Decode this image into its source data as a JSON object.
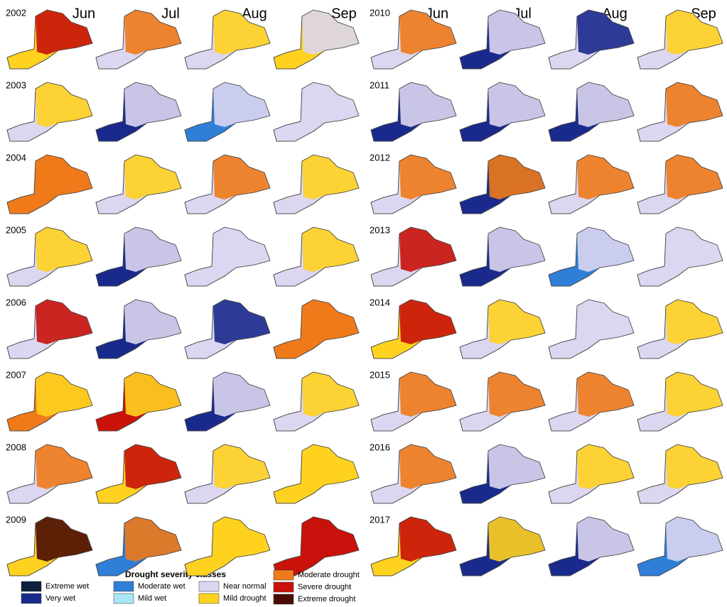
{
  "panels": [
    {
      "years": [
        "2002",
        "2003",
        "2004",
        "2005",
        "2006",
        "2007",
        "2008",
        "2009"
      ],
      "months": [
        "Jun",
        "Jul",
        "Aug",
        "Sep"
      ]
    },
    {
      "years": [
        "2010",
        "2011",
        "2012",
        "2013",
        "2014",
        "2015",
        "2016",
        "2017"
      ],
      "months": [
        "Jun",
        "Jul",
        "Aug",
        "Sep"
      ]
    }
  ],
  "legend": {
    "title": "Drought severity classes",
    "items": [
      {
        "label": "Extreme wet",
        "color": "#0d1f3c"
      },
      {
        "label": "Very wet",
        "color": "#1a2a8c"
      },
      {
        "label": "Moderate wet",
        "color": "#2f7fd8"
      },
      {
        "label": "Mild wet",
        "color": "#a8e6f5"
      },
      {
        "label": "Near normal",
        "color": "#dcd6f0"
      },
      {
        "label": "Mild drought",
        "color": "#ffd21f"
      },
      {
        "label": "Moderate drought",
        "color": "#f07a1a"
      },
      {
        "label": "Severe drought",
        "color": "#c8120a"
      },
      {
        "label": "Extreme drought",
        "color": "#4a0c04"
      }
    ]
  }
}
